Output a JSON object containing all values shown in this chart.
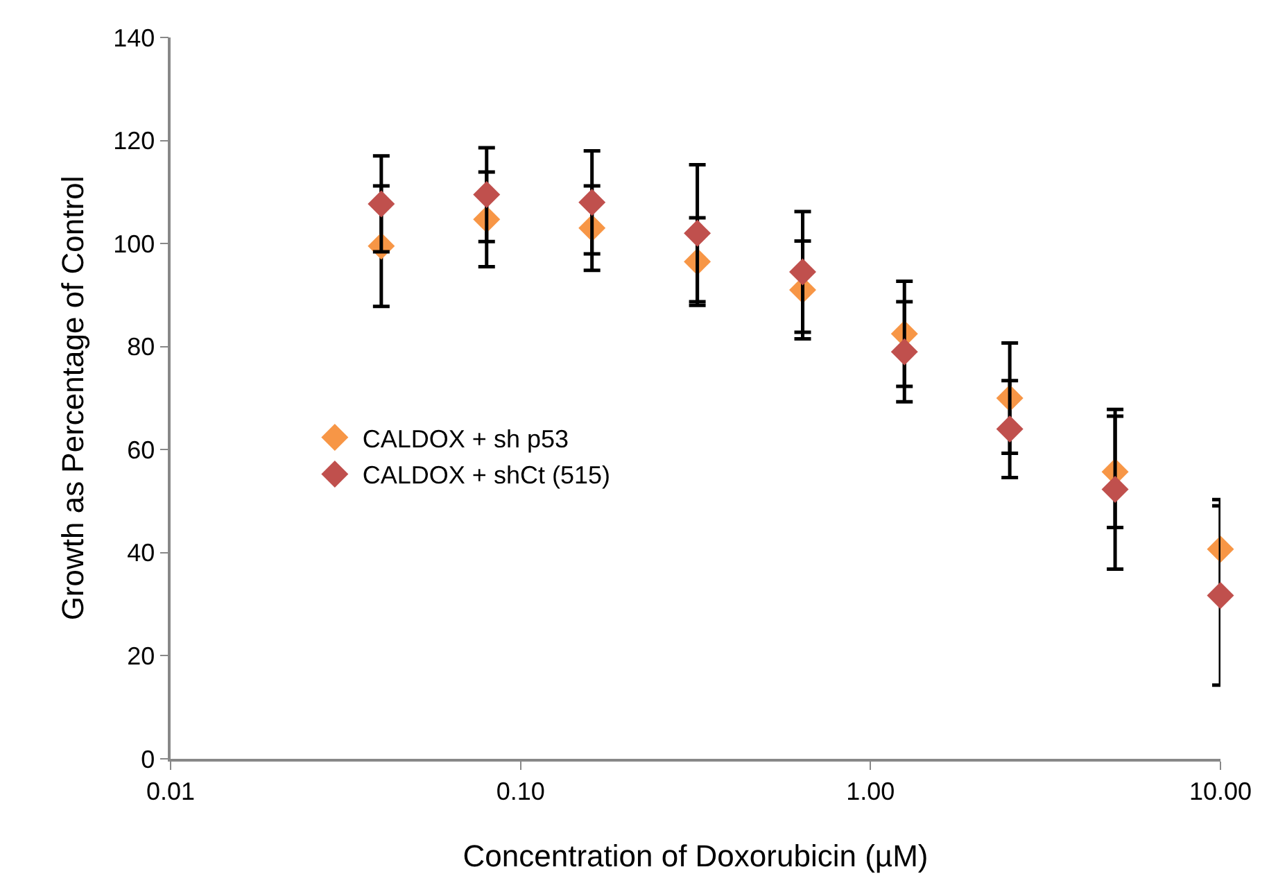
{
  "chart_data": {
    "type": "scatter",
    "xlabel": "Concentration of Doxorubicin (µM)",
    "ylabel": "Growth as Percentage of Control",
    "x": [
      0.04,
      0.08,
      0.16,
      0.32,
      0.64,
      1.25,
      2.5,
      5,
      10
    ],
    "series": [
      {
        "name": "CALDOX + sh p53",
        "color": "#f79646",
        "values": [
          99.5,
          104.7,
          103,
          96.5,
          91,
          82.5,
          70,
          55.7,
          40.7
        ],
        "errors": [
          11.7,
          9.2,
          8.2,
          8.5,
          9.5,
          10.2,
          10.7,
          10.8,
          9.6
        ]
      },
      {
        "name": "CALDOX + shCt (515)",
        "color": "#c0504d",
        "values": [
          107.7,
          109.5,
          108,
          102,
          94.5,
          79,
          64,
          52.3,
          31.7
        ],
        "errors": [
          9.3,
          9.1,
          10,
          13.3,
          11.7,
          9.7,
          9.4,
          15.5,
          17.4
        ]
      }
    ],
    "log": "x",
    "xlim": [
      0.01,
      10
    ],
    "xticks": [
      {
        "value": 0.01,
        "label": "0.01"
      },
      {
        "value": 0.1,
        "label": "0.10"
      },
      {
        "value": 1,
        "label": "1.00"
      },
      {
        "value": 10,
        "label": "10.00"
      }
    ],
    "ylim": [
      0,
      140
    ],
    "yticks": [
      0,
      20,
      40,
      60,
      80,
      100,
      120,
      140
    ],
    "grid": false,
    "legend": "left",
    "marker": "diamond"
  }
}
